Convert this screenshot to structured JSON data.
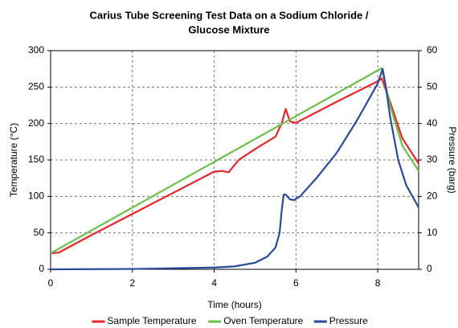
{
  "chart_data": {
    "type": "line",
    "title": [
      "Carius Tube Screening Test Data on a Sodium Chloride /",
      "Glucose Mixture"
    ],
    "xlabel": "Time (hours)",
    "ylabel": "Temperature (°C)",
    "y2label": "Pressure (barg)",
    "xlim": [
      0,
      9
    ],
    "xticks": [
      0,
      2,
      4,
      6,
      8
    ],
    "ylim": [
      0,
      300
    ],
    "yticks": [
      0,
      50,
      100,
      150,
      200,
      250,
      300
    ],
    "y2lim": [
      0,
      60
    ],
    "y2ticks": [
      0,
      10,
      20,
      30,
      40,
      50,
      60
    ],
    "grid": true,
    "legend": "bottom",
    "series": [
      {
        "name": "Sample Temperature",
        "color": "#e8262b",
        "x": [
          0,
          0.2,
          1,
          2,
          3,
          4,
          4.2,
          4.35,
          4.6,
          5,
          5.5,
          5.65,
          5.75,
          5.85,
          6,
          7,
          8,
          8.1,
          8.3,
          8.6,
          9
        ],
        "values": [
          22,
          23,
          47,
          76,
          105,
          134,
          135,
          133,
          150,
          165,
          182,
          200,
          220,
          203,
          201,
          230,
          258,
          262,
          230,
          180,
          145
        ]
      },
      {
        "name": "Oven Temperature",
        "color": "#6cc04a",
        "x": [
          0,
          8.1,
          8.3,
          8.6,
          9
        ],
        "values": [
          22,
          276,
          225,
          170,
          135
        ]
      },
      {
        "name": "Pressure",
        "color": "#2b4a9c",
        "axis": "y2",
        "x": [
          0,
          2,
          4,
          4.5,
          5,
          5.3,
          5.5,
          5.6,
          5.65,
          5.7,
          5.75,
          5.85,
          5.95,
          6.1,
          6.5,
          7,
          7.5,
          8,
          8.12,
          8.2,
          8.3,
          8.5,
          8.7,
          9
        ],
        "values": [
          0,
          0.1,
          0.5,
          0.8,
          1.8,
          3.5,
          6,
          10,
          16,
          20.5,
          20.5,
          19.2,
          19,
          20,
          25,
          32,
          41,
          51,
          55,
          50,
          42,
          30,
          23,
          17
        ]
      }
    ]
  }
}
